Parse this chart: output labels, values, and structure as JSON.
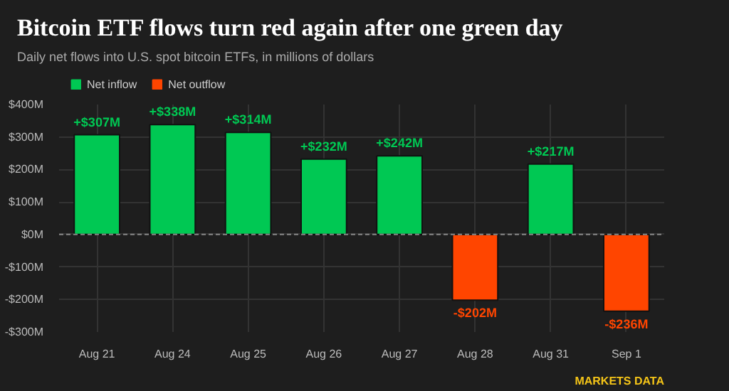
{
  "chart_data": {
    "type": "bar",
    "title": "Bitcoin ETF flows turn red again after one green day",
    "subtitle": "Daily net flows into U.S. spot bitcoin ETFs, in millions of dollars",
    "categories": [
      "Aug 21",
      "Aug 24",
      "Aug 25",
      "Aug 26",
      "Aug 27",
      "Aug 28",
      "Aug 31",
      "Sep 1"
    ],
    "series": [
      {
        "name": "Net inflow",
        "color": "#00c853",
        "values": [
          307,
          338,
          314,
          232,
          242,
          null,
          217,
          null
        ],
        "value_labels": [
          "+$307M",
          "+$338M",
          "+$314M",
          "+$232M",
          "+$242M",
          null,
          "+$217M",
          null
        ]
      },
      {
        "name": "Net outflow",
        "color": "#ff4500",
        "values": [
          null,
          null,
          null,
          null,
          null,
          -202,
          null,
          -236
        ],
        "value_labels": [
          null,
          null,
          null,
          null,
          null,
          "-$202M",
          null,
          "-$236M"
        ]
      }
    ],
    "ylim": [
      -300,
      400
    ],
    "yticks": [
      {
        "value": -300,
        "label": "-$300M"
      },
      {
        "value": -200,
        "label": "-$200M"
      },
      {
        "value": -100,
        "label": "-$100M"
      },
      {
        "value": 0,
        "label": "$0M"
      },
      {
        "value": 100,
        "label": "$100M"
      },
      {
        "value": 200,
        "label": "$200M"
      },
      {
        "value": 300,
        "label": "$300M"
      },
      {
        "value": 400,
        "label": "$400M"
      }
    ],
    "ref_lines": [
      {
        "axis": "y",
        "value": 0,
        "label": null,
        "color": "#888888",
        "line_style": "dashed"
      }
    ],
    "grid": true,
    "legend": "top left",
    "annotations": [
      "MARKETS DATA"
    ]
  }
}
